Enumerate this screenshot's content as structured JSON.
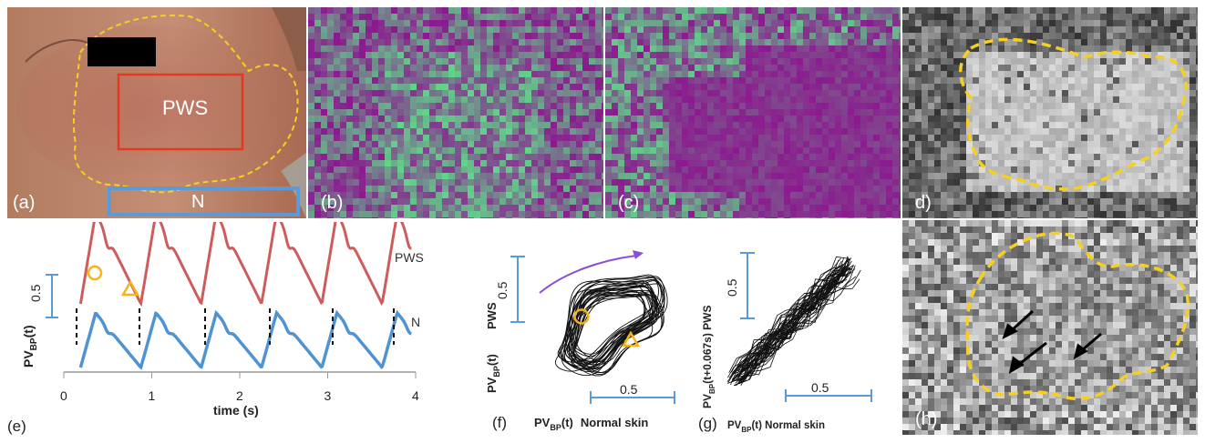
{
  "figure": {
    "panels": {
      "a": {
        "label": "(a)",
        "roi_pws": "PWS",
        "roi_normal": "N"
      },
      "b": {
        "label": "(b)"
      },
      "c": {
        "label": "(c)"
      },
      "d": {
        "label": "d)"
      },
      "e": {
        "label": "(e)",
        "ylabel": "PV",
        "ylabel_sub": "BP",
        "ylabel_tail": "(t)",
        "xlabel": "time (s)",
        "scale_label": "0.5",
        "series_pws": "PWS",
        "series_n": "N",
        "xticks": [
          "0",
          "1",
          "2",
          "3",
          "4"
        ]
      },
      "f": {
        "label": "(f)",
        "ylabel_main": "PV",
        "ylabel_sub": "BP",
        "ylabel_tail": "(t)",
        "ylabel_pws": "PWS",
        "xlabel_main": "PV",
        "xlabel_sub": "BP",
        "xlabel_tail": "(t)",
        "xlabel_normal": "Normal skin",
        "scale_y": "0.5",
        "scale_x": "0.5"
      },
      "g": {
        "label": "(g)",
        "ylabel_main": "PV",
        "ylabel_sub": "BP",
        "ylabel_tail": "(t+0.067s) PWS",
        "xlabel_main": "PV",
        "xlabel_sub": "BP",
        "xlabel_tail": "(t) Normal skin",
        "scale_y": "0.5",
        "scale_x": "0.5"
      },
      "h": {
        "label": "(h)"
      }
    },
    "colors": {
      "pws_curve": "#cd5c5c",
      "normal_curve": "#4f93d2",
      "roi_dash": "#f5d020",
      "pws_roi": "#e23a1e",
      "normal_roi": "#5b9bd5",
      "magenta": "#8b1a8f",
      "green": "#5fe08a",
      "marker": "#f6b31a",
      "arrow": "#8a4fd0"
    }
  }
}
